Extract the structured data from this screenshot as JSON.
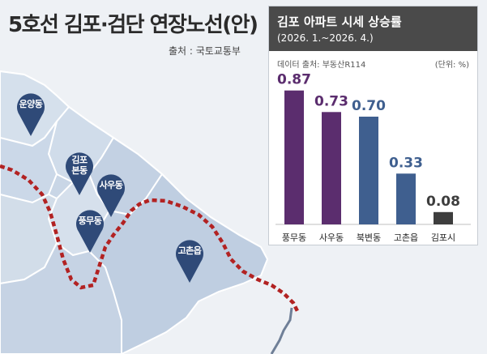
{
  "map": {
    "title": "5호선 김포·검단 연장노선(안)",
    "source": "출처 : 국토교통부",
    "pins": [
      {
        "label": "운양동"
      },
      {
        "label": "김포\n본동"
      },
      {
        "label": "사우동"
      },
      {
        "label": "풍무동"
      },
      {
        "label": "고촌읍"
      }
    ],
    "colors": {
      "land": "#c9d6e6",
      "land_light": "#dce5f0",
      "border": "#ffffff",
      "pin": "#2f4a78",
      "route": "#b22222",
      "river": "#6f7f97"
    }
  },
  "panel": {
    "title": "김포 아파트 시세 상승률",
    "subtitle": "(2026. 1.~2026. 4.)",
    "source": "데이터 출처: 부동산R114",
    "unit": "(단위: %)"
  },
  "chart_data": {
    "type": "bar",
    "title": "김포 아파트 시세 상승률",
    "subtitle": "(2026. 1.~2026. 4.)",
    "categories": [
      "풍무동",
      "사우동",
      "북변동",
      "고촌읍",
      "김포시"
    ],
    "values": [
      0.87,
      0.73,
      0.7,
      0.33,
      0.08
    ],
    "value_labels": [
      "0.87",
      "0.73",
      "0.70",
      "0.33",
      "0.08"
    ],
    "bar_colors": [
      "#5b2d6e",
      "#5b2d6e",
      "#3f5f8f",
      "#3f5f8f",
      "#3d3d3d"
    ],
    "label_colors": [
      "#5b2d6e",
      "#5b2d6e",
      "#3f5f8f",
      "#3f5f8f",
      "#3d3d3d"
    ],
    "ylim": [
      0,
      1
    ],
    "xlabel": "",
    "ylabel": "",
    "unit": "%"
  }
}
